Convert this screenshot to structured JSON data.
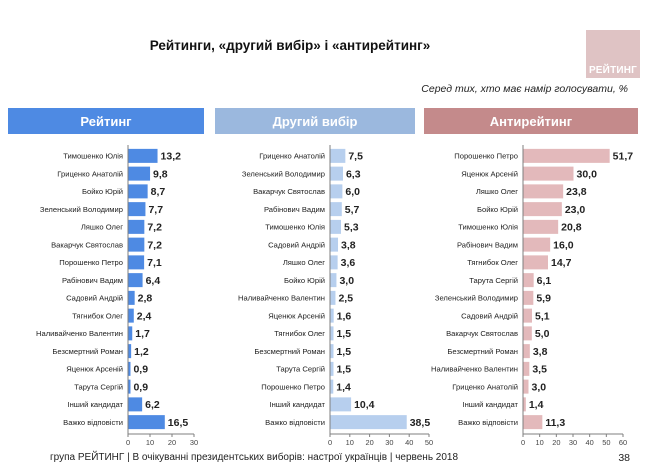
{
  "title": "Рейтинги, «другий вибір» і «антирейтинг»",
  "logo_text": "РЕЙТИНГ",
  "subtitle": "Серед тих, хто має намір голосувати, %",
  "footer": "група РЕЙТИНГ  | В очікуванні президентських виборів: настрої українців |  червень 2018",
  "page_number": "38",
  "colors": {
    "panel1_header": "#4e8ae3",
    "panel1_bar": "#4e8ae3",
    "panel2_header": "#9bb8de",
    "panel2_bar": "#b7cfee",
    "panel3_header": "#c48a8b",
    "panel3_bar": "#e3b9bb",
    "axis": "#7f7f7f",
    "logo_bg": "#dfc3c4"
  },
  "chart_data": [
    {
      "type": "bar",
      "orientation": "horizontal",
      "title": "Рейтинг",
      "categories": [
        "Тимошенко Юлія",
        "Гриценко Анатолій",
        "Бойко Юрій",
        "Зеленський Володимир",
        "Ляшко Олег",
        "Вакарчук Святослав",
        "Порошенко Петро",
        "Рабінович Вадим",
        "Садовий Андрій",
        "Тягнибок Олег",
        "Наливайченко Валентин",
        "Безсмертний Роман",
        "Яценюк Арсеній",
        "Тарута Сергій",
        "Інший кандидат",
        "Важко відповісти"
      ],
      "values": [
        13.2,
        9.8,
        8.7,
        7.7,
        7.2,
        7.2,
        7.1,
        6.4,
        2.8,
        2.4,
        1.7,
        1.2,
        0.9,
        0.9,
        6.2,
        16.5
      ],
      "value_labels": [
        "13,2",
        "9,8",
        "8,7",
        "7,7",
        "7,2",
        "7,2",
        "7,1",
        "6,4",
        "2,8",
        "2,4",
        "1,7",
        "1,2",
        "0,9",
        "0,9",
        "6,2",
        "16,5"
      ],
      "xlim": [
        0,
        30
      ],
      "xticks": [
        "0",
        "10",
        "20",
        "30"
      ]
    },
    {
      "type": "bar",
      "orientation": "horizontal",
      "title": "Другий вибір",
      "categories": [
        "Гриценко Анатолій",
        "Зеленський Володимир",
        "Вакарчук Святослав",
        "Рабінович Вадим",
        "Тимошенко Юлія",
        "Садовий Андрій",
        "Ляшко Олег",
        "Бойко Юрій",
        "Наливайченко Валентин",
        "Яценюк Арсеній",
        "Тягнибок Олег",
        "Безсмертний Роман",
        "Тарута Сергій",
        "Порошенко Петро",
        "Інший кандидат",
        "Важко відповісти"
      ],
      "values": [
        7.5,
        6.3,
        6.0,
        5.7,
        5.3,
        3.8,
        3.6,
        3.0,
        2.5,
        1.6,
        1.5,
        1.5,
        1.5,
        1.4,
        10.4,
        38.5
      ],
      "value_labels": [
        "7,5",
        "6,3",
        "6,0",
        "5,7",
        "5,3",
        "3,8",
        "3,6",
        "3,0",
        "2,5",
        "1,6",
        "1,5",
        "1,5",
        "1,5",
        "1,4",
        "10,4",
        "38,5"
      ],
      "xlim": [
        0,
        50
      ],
      "xticks": [
        "0",
        "10",
        "20",
        "30",
        "40",
        "50"
      ]
    },
    {
      "type": "bar",
      "orientation": "horizontal",
      "title": "Антирейтинг",
      "categories": [
        "Порошенко Петро",
        "Яценюк Арсеній",
        "Ляшко Олег",
        "Бойко Юрій",
        "Тимошенко Юлія",
        "Рабінович Вадим",
        "Тягнибок Олег",
        "Тарута Сергій",
        "Зеленський Володимир",
        "Садовий Андрій",
        "Вакарчук Святослав",
        "Безсмертний Роман",
        "Наливайченко Валентин",
        "Гриценко Анатолій",
        "Інший кандидат",
        "Важко відповісти"
      ],
      "values": [
        51.7,
        30.0,
        23.8,
        23.0,
        20.8,
        16.0,
        14.7,
        6.1,
        5.9,
        5.1,
        5.0,
        3.8,
        3.5,
        3.0,
        1.4,
        11.3
      ],
      "value_labels": [
        "51,7",
        "30,0",
        "23,8",
        "23,0",
        "20,8",
        "16,0",
        "14,7",
        "6,1",
        "5,9",
        "5,1",
        "5,0",
        "3,8",
        "3,5",
        "3,0",
        "1,4",
        "11,3"
      ],
      "xlim": [
        0,
        60
      ],
      "xticks": [
        "0",
        "10",
        "20",
        "30",
        "40",
        "50",
        "60"
      ]
    }
  ]
}
